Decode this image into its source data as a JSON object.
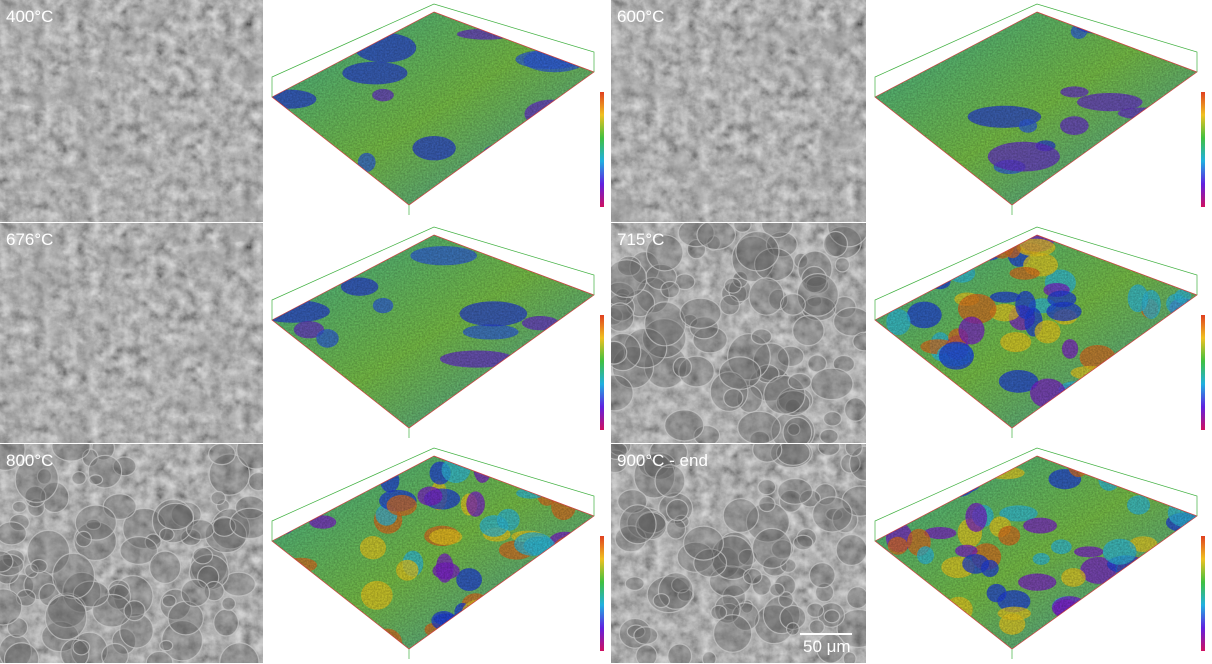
{
  "panels": [
    {
      "label": "400°C"
    },
    {
      "label": "600°C"
    },
    {
      "label": "676°C"
    },
    {
      "label": "715°C"
    },
    {
      "label": "800°C"
    },
    {
      "label": "900°C - end"
    }
  ],
  "scale_bar": "50 μm"
}
